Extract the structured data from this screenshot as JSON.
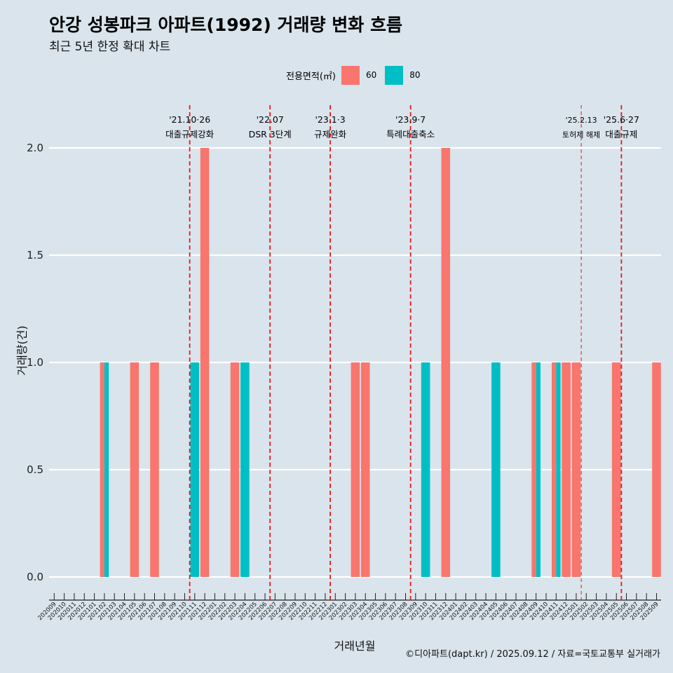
{
  "title": "안강 성봉파크 아파트(1992) 거래량 변화 흐름",
  "subtitle": "최근 5년 한정 확대 차트",
  "caption": "©디아파트(dapt.kr) / 2025.09.12 / 자료=국토교통부 실거래가",
  "legend": {
    "title": "전용면적(㎡)",
    "items": [
      {
        "label": "60",
        "color": "#f8766d"
      },
      {
        "label": "80",
        "color": "#00bfc4"
      }
    ]
  },
  "chart_data": {
    "type": "bar",
    "xlabel": "거래년월",
    "ylabel": "거래량(건)",
    "ylim": [
      0,
      2
    ],
    "yticks": [
      "0.0",
      "0.5",
      "1.0",
      "1.5",
      "2.0"
    ],
    "grid": "horizontal major",
    "legend_position": "top",
    "categories": [
      "202009",
      "202010",
      "202011",
      "202012",
      "202101",
      "202102",
      "202103",
      "202104",
      "202105",
      "202106",
      "202107",
      "202108",
      "202109",
      "202110",
      "202111",
      "202112",
      "202201",
      "202202",
      "202203",
      "202204",
      "202205",
      "202206",
      "202207",
      "202208",
      "202209",
      "202210",
      "202211",
      "202212",
      "202301",
      "202302",
      "202303",
      "202304",
      "202305",
      "202306",
      "202307",
      "202308",
      "202309",
      "202310",
      "202311",
      "202312",
      "202401",
      "202402",
      "202403",
      "202404",
      "202405",
      "202406",
      "202407",
      "202408",
      "202409",
      "202410",
      "202411",
      "202412",
      "202501",
      "202502",
      "202503",
      "202504",
      "202505",
      "202506",
      "202507",
      "202508",
      "202509"
    ],
    "series": [
      {
        "name": "60",
        "color": "#f8766d",
        "points": [
          {
            "x": "202102",
            "y": 1
          },
          {
            "x": "202105",
            "y": 1
          },
          {
            "x": "202107",
            "y": 1
          },
          {
            "x": "202112",
            "y": 2
          },
          {
            "x": "202203",
            "y": 1
          },
          {
            "x": "202303",
            "y": 1
          },
          {
            "x": "202304",
            "y": 1
          },
          {
            "x": "202312",
            "y": 2
          },
          {
            "x": "202409",
            "y": 1
          },
          {
            "x": "202411",
            "y": 1
          },
          {
            "x": "202412",
            "y": 1
          },
          {
            "x": "202501",
            "y": 1
          },
          {
            "x": "202505",
            "y": 1
          },
          {
            "x": "202509",
            "y": 1
          }
        ]
      },
      {
        "name": "80",
        "color": "#00bfc4",
        "points": [
          {
            "x": "202102",
            "y": 1
          },
          {
            "x": "202111",
            "y": 1
          },
          {
            "x": "202204",
            "y": 1
          },
          {
            "x": "202310",
            "y": 1
          },
          {
            "x": "202405",
            "y": 1
          },
          {
            "x": "202409",
            "y": 1
          },
          {
            "x": "202411",
            "y": 1
          }
        ]
      }
    ],
    "annotations": [
      {
        "x": "202111",
        "date": "'21.10·26",
        "label": "대출규제강화",
        "style": "bold"
      },
      {
        "x": "202207",
        "date": "'22.07",
        "label": "DSR 3단계",
        "style": "bold"
      },
      {
        "x": "202301",
        "date": "'23.1·3",
        "label": "규제완화",
        "style": "bold"
      },
      {
        "x": "202309",
        "date": "'23.9·7",
        "label": "특례대출축소",
        "style": "bold"
      },
      {
        "x": "202502",
        "date": "'25.2.13",
        "label": "토허제 해제",
        "style": "thin"
      },
      {
        "x": "202506",
        "date": "'25.6·27",
        "label": "대출규제",
        "style": "bold"
      }
    ]
  }
}
